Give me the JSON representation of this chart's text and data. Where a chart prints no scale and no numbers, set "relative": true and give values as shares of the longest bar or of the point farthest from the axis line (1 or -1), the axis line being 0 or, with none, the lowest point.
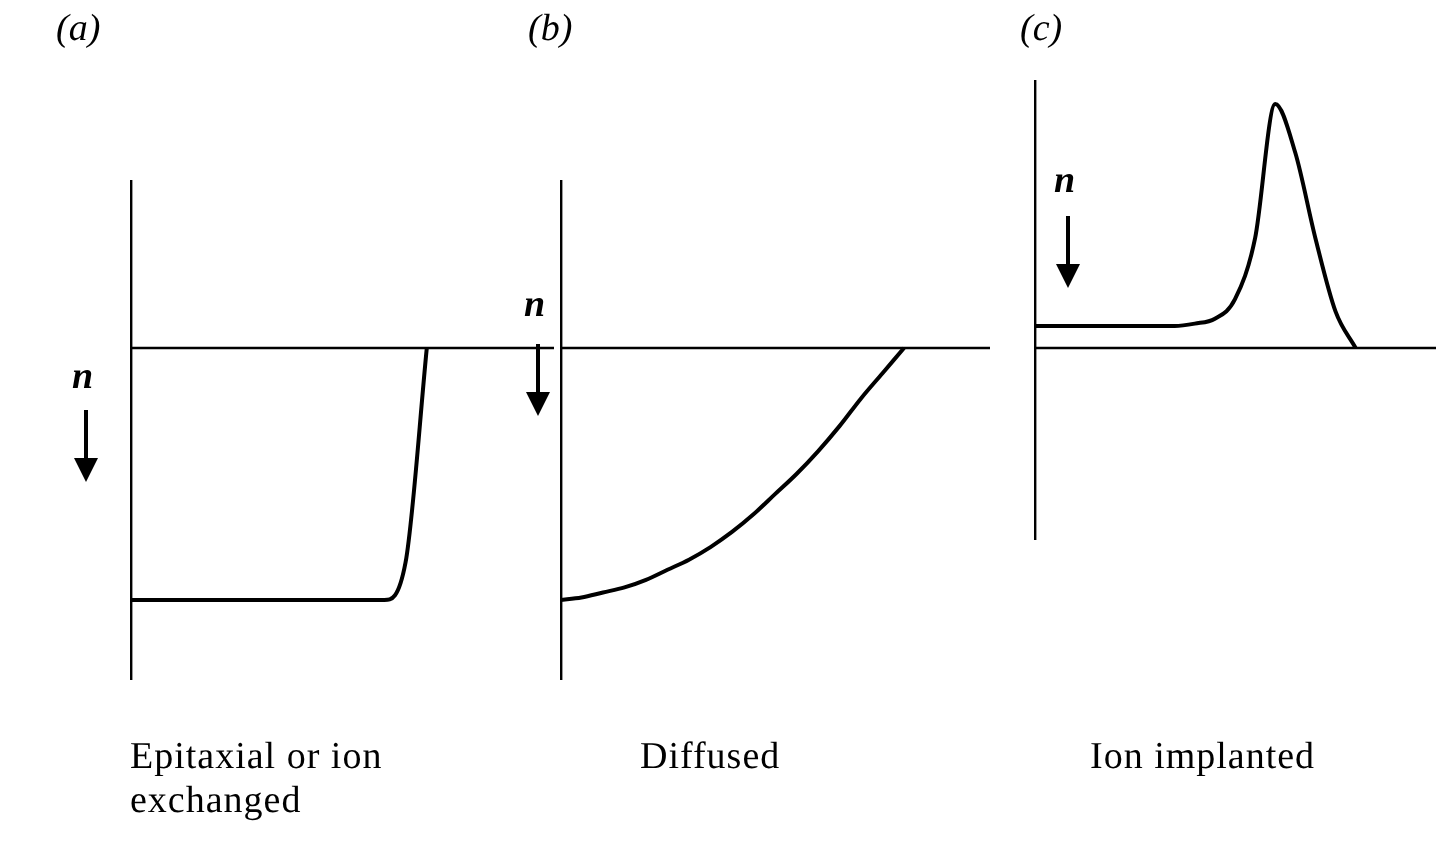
{
  "chart_data": [
    {
      "type": "line",
      "title": "(a)",
      "xlabel": "Epitaxial or ion exchanged",
      "ylabel": "n",
      "relative": true,
      "color": "#000000",
      "categories": [
        null,
        null,
        null,
        null,
        null,
        null,
        null,
        null,
        null,
        null,
        null,
        null,
        null,
        null,
        null,
        null,
        null,
        null,
        null,
        null,
        null
      ],
      "values": [
        -1,
        -1,
        -1,
        -1,
        -1,
        -1,
        -1,
        -1,
        -1,
        -1,
        -1,
        -1,
        -1,
        -0.85,
        0,
        null,
        null,
        null,
        null,
        null,
        null
      ]
    },
    {
      "type": "line",
      "title": "(b)",
      "xlabel": "Diffused",
      "ylabel": "n",
      "relative": true,
      "color": "#000000",
      "categories": [
        null,
        null,
        null,
        null,
        null,
        null,
        null,
        null,
        null,
        null,
        null,
        null,
        null,
        null,
        null,
        null,
        null,
        null,
        null,
        null,
        null
      ],
      "values": [
        -1,
        -0.99,
        -0.97,
        -0.95,
        -0.92,
        -0.88,
        -0.84,
        -0.79,
        -0.73,
        -0.66,
        -0.58,
        -0.5,
        -0.41,
        -0.31,
        -0.2,
        -0.1,
        0,
        null,
        null,
        null,
        null
      ]
    },
    {
      "type": "line",
      "title": "(c)",
      "xlabel": "Ion implanted",
      "ylabel": "n",
      "relative": true,
      "color": "#000000",
      "categories": [
        null,
        null,
        null,
        null,
        null,
        null,
        null,
        null,
        null,
        null,
        null,
        null,
        null,
        null,
        null,
        null,
        null,
        null,
        null,
        null,
        null
      ],
      "values": [
        0.09,
        0.09,
        0.09,
        0.09,
        0.09,
        0.09,
        0.09,
        0.09,
        0.1,
        0.12,
        0.2,
        0.45,
        1,
        0.8,
        0.45,
        0.15,
        0,
        null,
        null,
        null,
        null
      ]
    }
  ]
}
